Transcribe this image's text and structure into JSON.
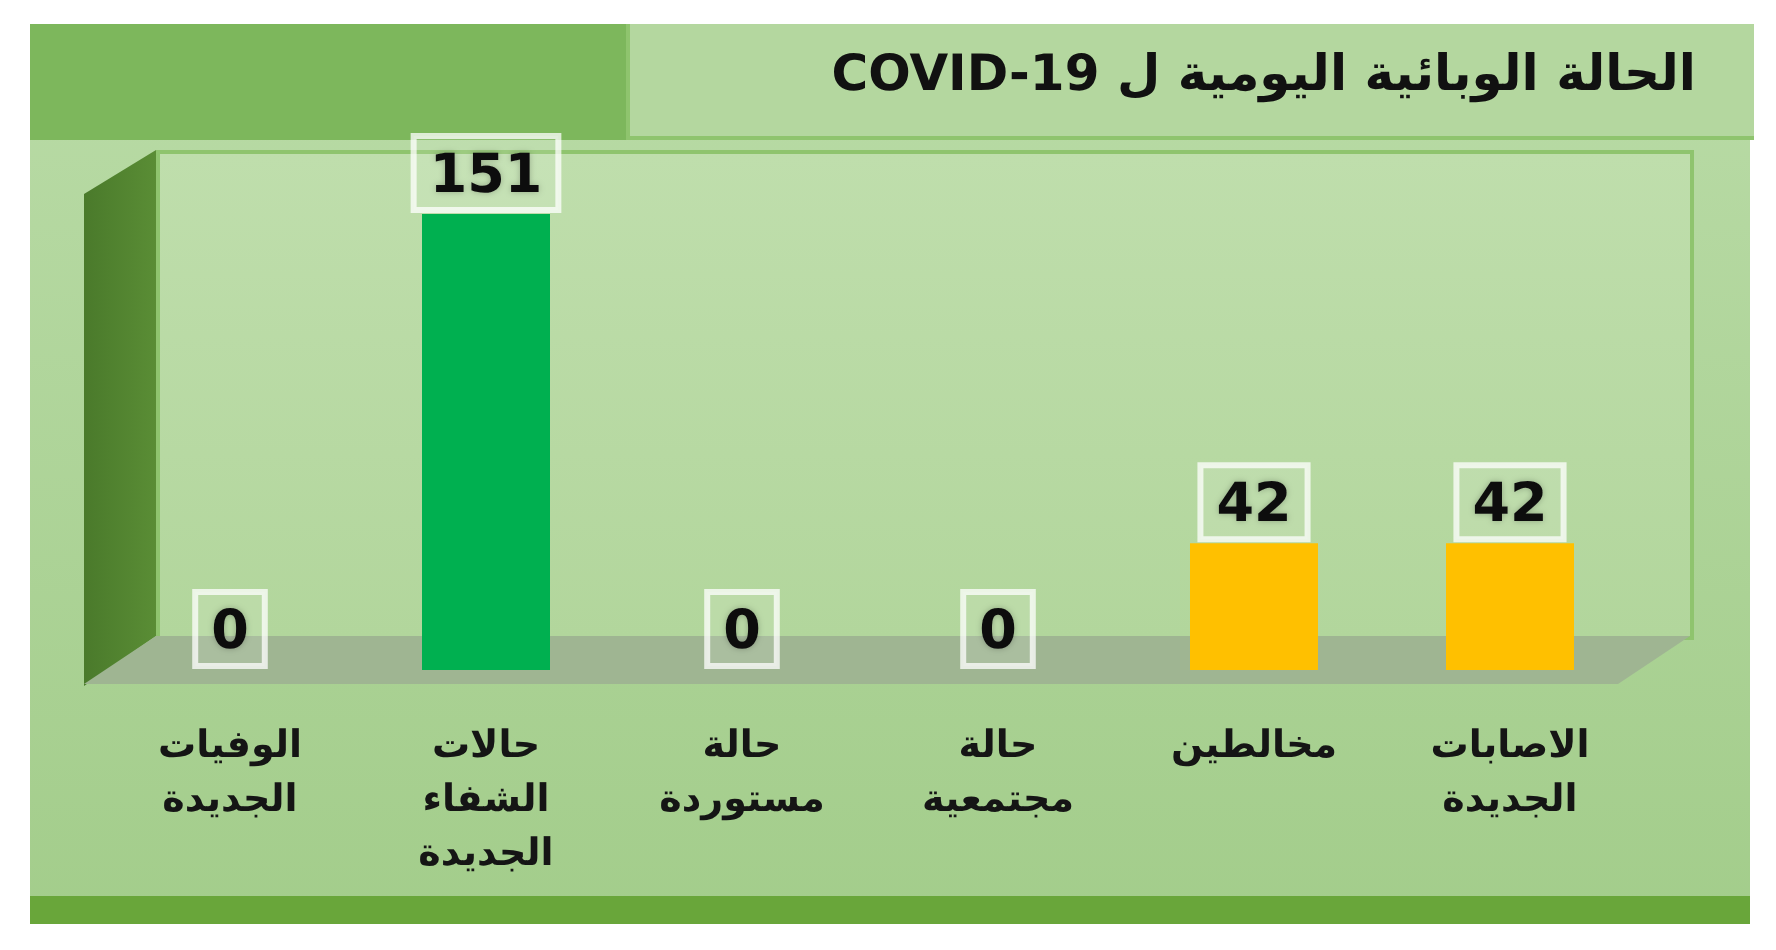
{
  "chart_data": {
    "type": "bar",
    "title": "الحالة الوبائية اليومية ل COVID-19",
    "categories": [
      "الوفيات الجديدة",
      "حالات الشفاء الجديدة",
      "حالة مستوردة",
      "حالة مجتمعية",
      "مخالطين",
      "الاصابات الجديدة"
    ],
    "values": [
      0,
      151,
      0,
      0,
      42,
      42
    ],
    "colors": [
      "#c00000",
      "#00b050",
      "#bf8f00",
      "#bf8f00",
      "#ffc000",
      "#ffc000"
    ],
    "data_labels": true,
    "tick_labels": "x"
  }
}
